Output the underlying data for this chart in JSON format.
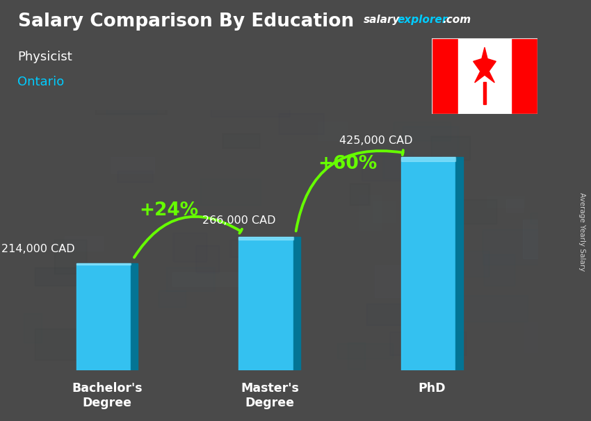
{
  "title": "Salary Comparison By Education",
  "subtitle_job": "Physicist",
  "subtitle_location": "Ontario",
  "ylabel": "Average Yearly Salary",
  "categories": [
    "Bachelor's\nDegree",
    "Master's\nDegree",
    "PhD"
  ],
  "values": [
    214000,
    266000,
    425000
  ],
  "value_labels": [
    "214,000 CAD",
    "266,000 CAD",
    "425,000 CAD"
  ],
  "bar_color_main": "#00AADD",
  "bar_color_light": "#33CCFF",
  "bar_color_dark": "#007799",
  "pct_labels": [
    "+24%",
    "+60%"
  ],
  "title_color": "#FFFFFF",
  "subtitle_job_color": "#FFFFFF",
  "subtitle_loc_color": "#00CCFF",
  "value_label_color": "#FFFFFF",
  "pct_color": "#66FF00",
  "bg_color": "#4a4a4a",
  "bar_width": 0.38,
  "ylim": [
    0,
    520000
  ],
  "xlim": [
    -0.55,
    2.65
  ]
}
